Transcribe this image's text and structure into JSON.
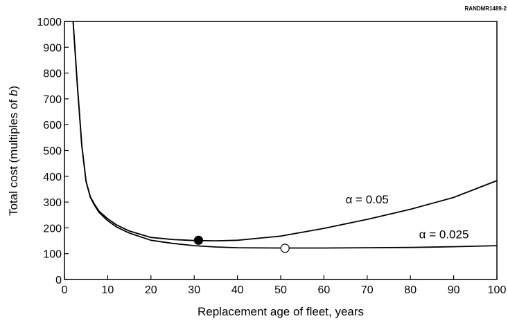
{
  "corner_label": "RANDMR1489-2",
  "chart_data": {
    "type": "line",
    "title": "",
    "xlabel": "Replacement age of fleet, years",
    "ylabel_prefix": "Total cost (multiples of ",
    "ylabel_var": "b",
    "ylabel_suffix": ")",
    "xlim": [
      0,
      100
    ],
    "ylim": [
      0,
      1000
    ],
    "xticks": [
      0,
      10,
      20,
      30,
      40,
      50,
      60,
      70,
      80,
      90,
      100
    ],
    "yticks": [
      0,
      100,
      200,
      300,
      400,
      500,
      600,
      700,
      800,
      900,
      1000
    ],
    "grid": false,
    "series": [
      {
        "name": "α = 0.05",
        "x": [
          2,
          3,
          4,
          5,
          6,
          7,
          8,
          10,
          12,
          15,
          20,
          25,
          30,
          35,
          40,
          50,
          60,
          70,
          80,
          90,
          100
        ],
        "y": [
          1000,
          750,
          520,
          380,
          320,
          290,
          265,
          235,
          212,
          188,
          163,
          155,
          151,
          150,
          152,
          168,
          198,
          233,
          272,
          318,
          383
        ],
        "marker": {
          "x": 31,
          "y": 152,
          "fill": "#000000"
        }
      },
      {
        "name": "α = 0.025",
        "x": [
          2,
          3,
          4,
          5,
          6,
          7,
          8,
          10,
          12,
          15,
          20,
          25,
          30,
          35,
          40,
          50,
          60,
          70,
          80,
          90,
          100
        ],
        "y": [
          1000,
          750,
          520,
          380,
          318,
          286,
          260,
          228,
          204,
          180,
          152,
          140,
          131,
          126,
          123,
          122,
          122,
          123,
          124,
          127,
          131
        ],
        "marker": {
          "x": 51,
          "y": 121,
          "fill": "#ffffff"
        }
      }
    ],
    "annotations": [
      {
        "text": "α = 0.05",
        "x": 65,
        "y": 295
      },
      {
        "text": "α = 0.025",
        "x": 82,
        "y": 160
      }
    ]
  }
}
